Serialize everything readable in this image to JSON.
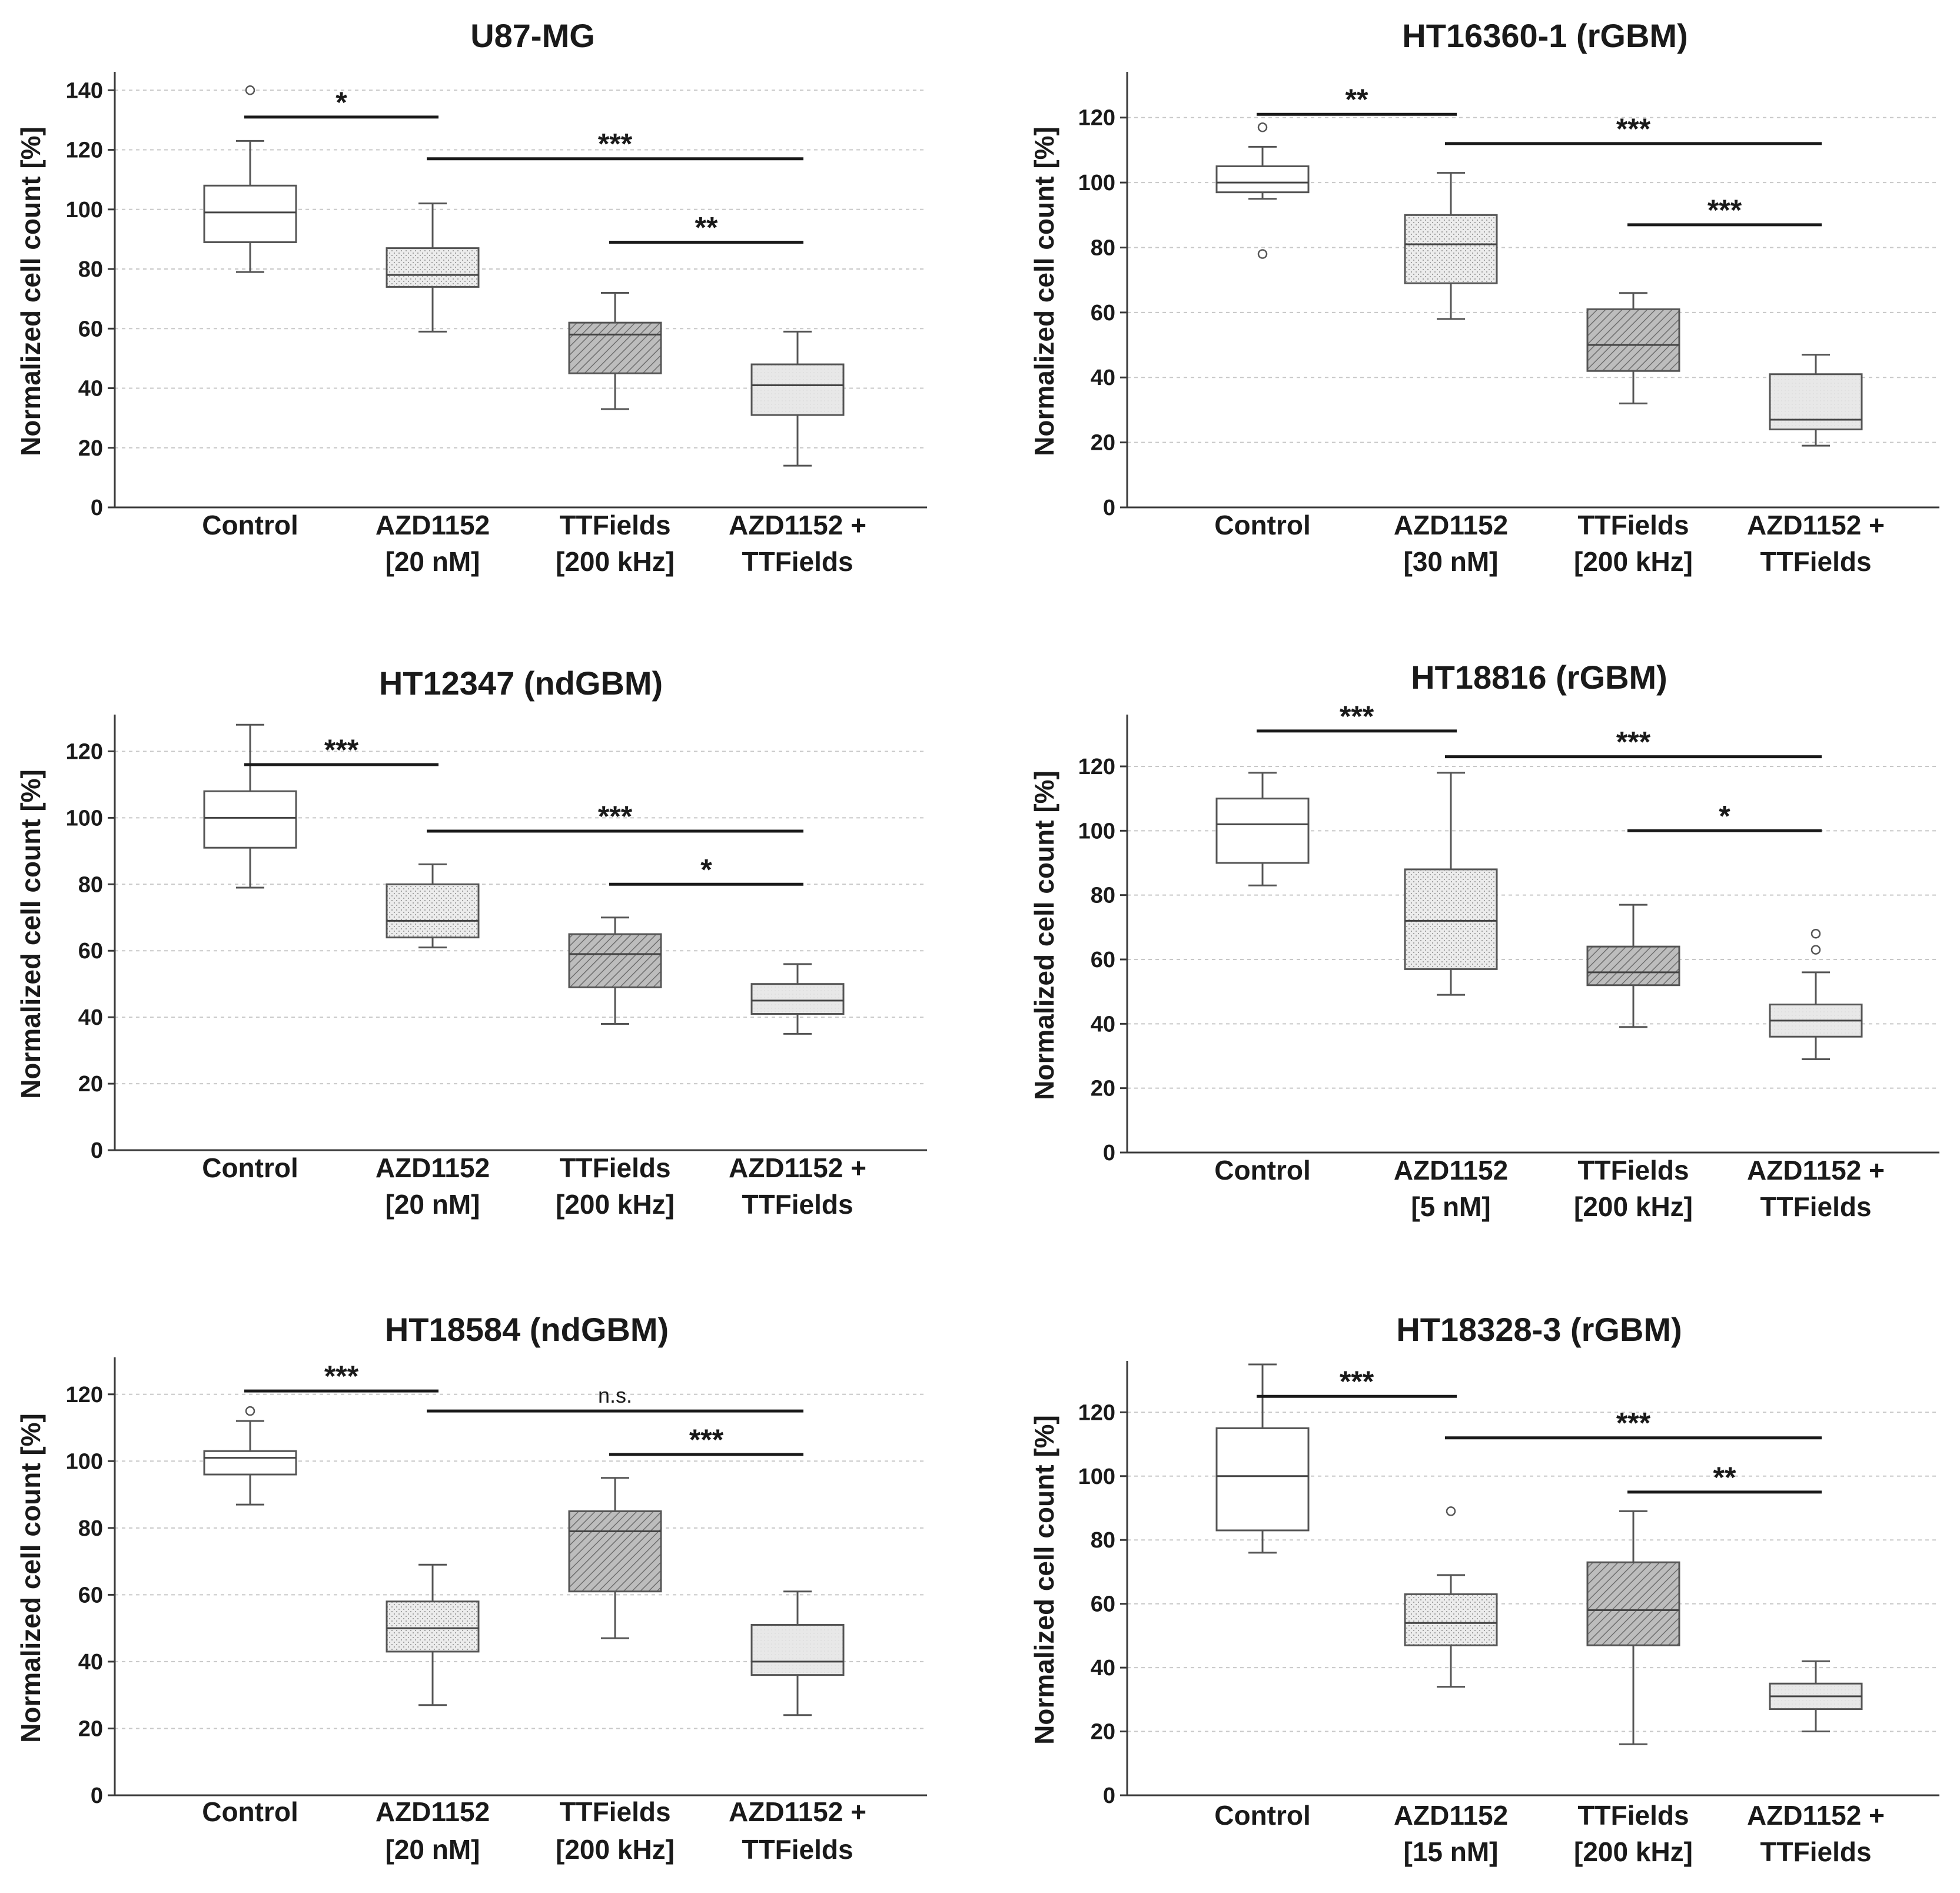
{
  "colors": {
    "axis": "#3a3a3a",
    "grid": "#c8c8c8",
    "box_stroke": "#555555",
    "text": "#1a1a1a",
    "fill_control": "#ffffff",
    "fill_azd": "#e6e6e6",
    "fill_ttf": "#c8c8c8",
    "fill_combo": "#e9e9e9"
  },
  "y_axis_label": "Normalized cell count [%]",
  "chart_data": [
    {
      "type": "box",
      "title": "U87-MG",
      "ylim": [
        0,
        145
      ],
      "yticks": [
        0,
        20,
        40,
        60,
        80,
        100,
        120,
        140
      ],
      "categories": [
        [
          "Control"
        ],
        [
          "AZD1152",
          "[20 nM]"
        ],
        [
          "TTFields",
          "[200 kHz]"
        ],
        [
          "AZD1152  +",
          "TTFields"
        ]
      ],
      "boxes": [
        {
          "whisker_low": 79,
          "q1": 89,
          "median": 99,
          "q3": 108,
          "whisker_high": 123,
          "outliers": [
            140
          ],
          "pattern": "control"
        },
        {
          "whisker_low": 59,
          "q1": 74,
          "median": 78,
          "q3": 87,
          "whisker_high": 102,
          "outliers": [],
          "pattern": "dots"
        },
        {
          "whisker_low": 33,
          "q1": 45,
          "median": 58,
          "q3": 62,
          "whisker_high": 72,
          "outliers": [],
          "pattern": "hatch"
        },
        {
          "whisker_low": 14,
          "q1": 31,
          "median": 41,
          "q3": 48,
          "whisker_high": 59,
          "outliers": [],
          "pattern": "light"
        }
      ],
      "brackets": [
        {
          "from": 0,
          "to": 1,
          "y": 131,
          "label": "*"
        },
        {
          "from": 1,
          "to": 3,
          "y": 117,
          "label": "***"
        },
        {
          "from": 2,
          "to": 3,
          "y": 89,
          "label": "**"
        }
      ]
    },
    {
      "type": "box",
      "title": "HT16360-1 (rGBM)",
      "ylim": [
        0,
        133
      ],
      "yticks": [
        0,
        20,
        40,
        60,
        80,
        100,
        120
      ],
      "categories": [
        [
          "Control"
        ],
        [
          "AZD1152",
          "[30 nM]"
        ],
        [
          "TTFields",
          "[200 kHz]"
        ],
        [
          "AZD1152  +",
          "TTFields"
        ]
      ],
      "boxes": [
        {
          "whisker_low": 95,
          "q1": 97,
          "median": 100,
          "q3": 105,
          "whisker_high": 111,
          "outliers": [
            117,
            78
          ],
          "pattern": "control"
        },
        {
          "whisker_low": 58,
          "q1": 69,
          "median": 81,
          "q3": 90,
          "whisker_high": 103,
          "outliers": [],
          "pattern": "dots"
        },
        {
          "whisker_low": 32,
          "q1": 42,
          "median": 50,
          "q3": 61,
          "whisker_high": 66,
          "outliers": [],
          "pattern": "hatch"
        },
        {
          "whisker_low": 19,
          "q1": 24,
          "median": 27,
          "q3": 41,
          "whisker_high": 47,
          "outliers": [],
          "pattern": "light"
        }
      ],
      "brackets": [
        {
          "from": 0,
          "to": 1,
          "y": 121,
          "label": "**"
        },
        {
          "from": 1,
          "to": 3,
          "y": 112,
          "label": "***"
        },
        {
          "from": 2,
          "to": 3,
          "y": 87,
          "label": "***"
        }
      ]
    },
    {
      "type": "box",
      "title": "HT12347 (ndGBM)",
      "ylim": [
        0,
        130
      ],
      "yticks": [
        0,
        20,
        40,
        60,
        80,
        100,
        120
      ],
      "categories": [
        [
          "Control"
        ],
        [
          "AZD1152",
          "[20 nM]"
        ],
        [
          "TTFields",
          "[200 kHz]"
        ],
        [
          "AZD1152  +",
          "TTFields"
        ]
      ],
      "boxes": [
        {
          "whisker_low": 79,
          "q1": 91,
          "median": 100,
          "q3": 108,
          "whisker_high": 128,
          "outliers": [],
          "pattern": "control"
        },
        {
          "whisker_low": 61,
          "q1": 64,
          "median": 69,
          "q3": 80,
          "whisker_high": 86,
          "outliers": [],
          "pattern": "dots"
        },
        {
          "whisker_low": 38,
          "q1": 49,
          "median": 59,
          "q3": 65,
          "whisker_high": 70,
          "outliers": [],
          "pattern": "hatch"
        },
        {
          "whisker_low": 35,
          "q1": 41,
          "median": 45,
          "q3": 50,
          "whisker_high": 56,
          "outliers": [],
          "pattern": "light"
        }
      ],
      "brackets": [
        {
          "from": 0,
          "to": 1,
          "y": 116,
          "label": "***"
        },
        {
          "from": 1,
          "to": 3,
          "y": 96,
          "label": "***"
        },
        {
          "from": 2,
          "to": 3,
          "y": 80,
          "label": "*"
        }
      ]
    },
    {
      "type": "box",
      "title": "HT18816 (rGBM)",
      "ylim": [
        0,
        135
      ],
      "yticks": [
        0,
        20,
        40,
        60,
        80,
        100,
        120
      ],
      "categories": [
        [
          "Control"
        ],
        [
          "AZD1152",
          "[5 nM]"
        ],
        [
          "TTFields",
          "[200 kHz]"
        ],
        [
          "AZD1152  +",
          "TTFields"
        ]
      ],
      "boxes": [
        {
          "whisker_low": 83,
          "q1": 90,
          "median": 102,
          "q3": 110,
          "whisker_high": 118,
          "outliers": [],
          "pattern": "control"
        },
        {
          "whisker_low": 49,
          "q1": 57,
          "median": 72,
          "q3": 88,
          "whisker_high": 118,
          "outliers": [],
          "pattern": "dots"
        },
        {
          "whisker_low": 39,
          "q1": 52,
          "median": 56,
          "q3": 64,
          "whisker_high": 77,
          "outliers": [],
          "pattern": "hatch"
        },
        {
          "whisker_low": 29,
          "q1": 36,
          "median": 41,
          "q3": 46,
          "whisker_high": 56,
          "outliers": [
            68,
            63
          ],
          "pattern": "light"
        }
      ],
      "brackets": [
        {
          "from": 0,
          "to": 1,
          "y": 131,
          "label": "***"
        },
        {
          "from": 1,
          "to": 3,
          "y": 123,
          "label": "***"
        },
        {
          "from": 2,
          "to": 3,
          "y": 100,
          "label": "*"
        }
      ]
    },
    {
      "type": "box",
      "title": "HT18584 (ndGBM)",
      "ylim": [
        0,
        130
      ],
      "yticks": [
        0,
        20,
        40,
        60,
        80,
        100,
        120
      ],
      "categories": [
        [
          "Control"
        ],
        [
          "AZD1152",
          "[20 nM]"
        ],
        [
          "TTFields",
          "[200 kHz]"
        ],
        [
          "AZD1152  +",
          "TTFields"
        ]
      ],
      "boxes": [
        {
          "whisker_low": 87,
          "q1": 96,
          "median": 101,
          "q3": 103,
          "whisker_high": 112,
          "outliers": [
            115
          ],
          "pattern": "control"
        },
        {
          "whisker_low": 27,
          "q1": 43,
          "median": 50,
          "q3": 58,
          "whisker_high": 69,
          "outliers": [],
          "pattern": "dots"
        },
        {
          "whisker_low": 47,
          "q1": 61,
          "median": 79,
          "q3": 85,
          "whisker_high": 95,
          "outliers": [],
          "pattern": "hatch"
        },
        {
          "whisker_low": 24,
          "q1": 36,
          "median": 40,
          "q3": 51,
          "whisker_high": 61,
          "outliers": [],
          "pattern": "light"
        }
      ],
      "brackets": [
        {
          "from": 0,
          "to": 1,
          "y": 121,
          "label": "***"
        },
        {
          "from": 1,
          "to": 3,
          "y": 115,
          "label": "n.s."
        },
        {
          "from": 2,
          "to": 3,
          "y": 102,
          "label": "***"
        }
      ]
    },
    {
      "type": "box",
      "title": "HT18328-3 (rGBM)",
      "ylim": [
        0,
        135
      ],
      "yticks": [
        0,
        20,
        40,
        60,
        80,
        100,
        120
      ],
      "categories": [
        [
          "Control"
        ],
        [
          "AZD1152",
          "[15 nM]"
        ],
        [
          "TTFields",
          "[200 kHz]"
        ],
        [
          "AZD1152  +",
          "TTFields"
        ]
      ],
      "boxes": [
        {
          "whisker_low": 76,
          "q1": 83,
          "median": 100,
          "q3": 115,
          "whisker_high": 135,
          "outliers": [],
          "pattern": "control"
        },
        {
          "whisker_low": 34,
          "q1": 47,
          "median": 54,
          "q3": 63,
          "whisker_high": 69,
          "outliers": [
            89
          ],
          "pattern": "dots"
        },
        {
          "whisker_low": 16,
          "q1": 47,
          "median": 58,
          "q3": 73,
          "whisker_high": 89,
          "outliers": [],
          "pattern": "hatch"
        },
        {
          "whisker_low": 20,
          "q1": 27,
          "median": 31,
          "q3": 35,
          "whisker_high": 42,
          "outliers": [],
          "pattern": "light"
        }
      ],
      "brackets": [
        {
          "from": 0,
          "to": 1,
          "y": 125,
          "label": "***"
        },
        {
          "from": 1,
          "to": 3,
          "y": 112,
          "label": "***"
        },
        {
          "from": 2,
          "to": 3,
          "y": 95,
          "label": "**"
        }
      ]
    }
  ]
}
